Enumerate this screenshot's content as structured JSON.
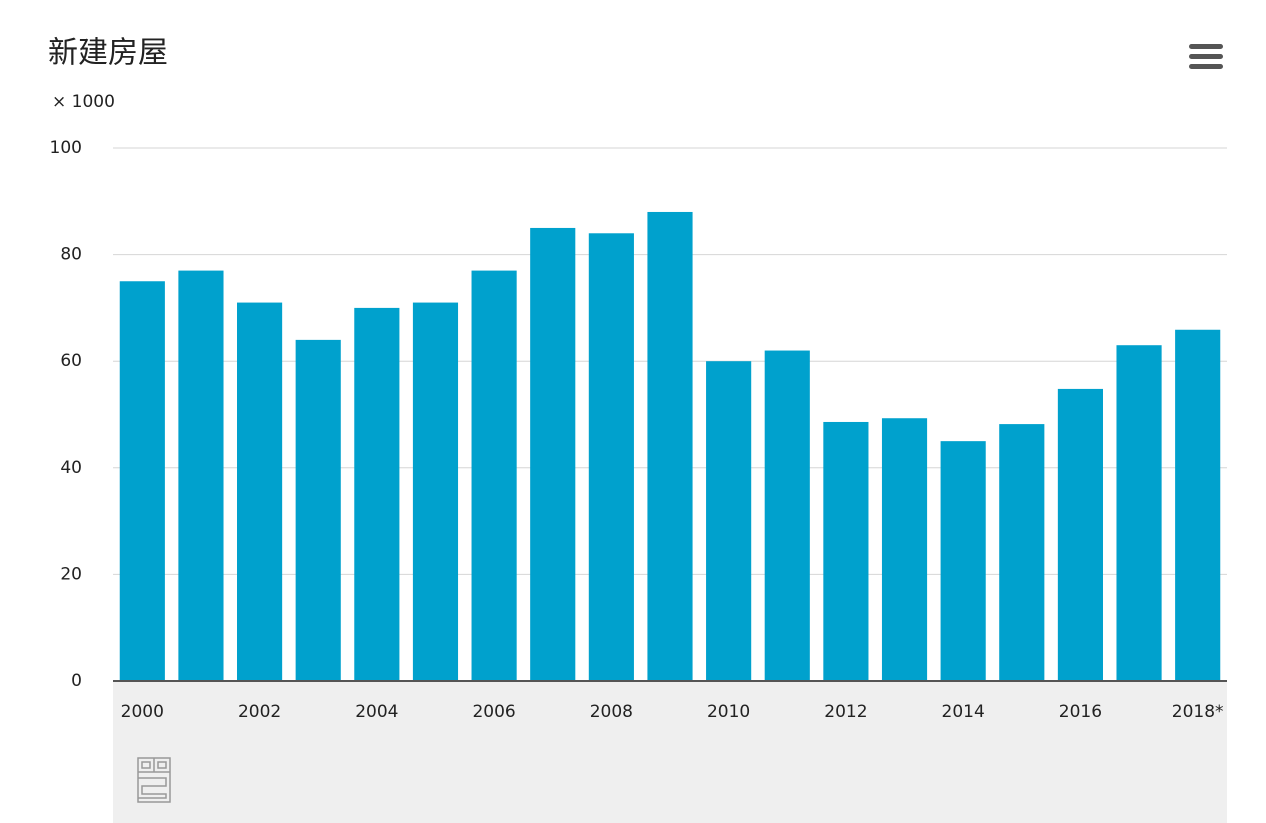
{
  "chart_data": {
    "type": "bar",
    "title": "新建房屋",
    "y_unit": "× 1000",
    "categories": [
      "2000",
      null,
      "2002",
      null,
      "2004",
      null,
      "2006",
      null,
      "2008",
      null,
      "2010",
      null,
      "2012",
      null,
      "2014",
      null,
      "2016",
      null,
      "2018*"
    ],
    "values": [
      75,
      77,
      71,
      64,
      70,
      71,
      77,
      85,
      84,
      88,
      60,
      62,
      48.6,
      49.3,
      45,
      48.2,
      54.8,
      63,
      65.9
    ],
    "color": "#00a1cd",
    "ylim": [
      0,
      100
    ],
    "yticks": [
      0,
      20,
      40,
      60,
      80,
      100
    ],
    "grid": true
  }
}
